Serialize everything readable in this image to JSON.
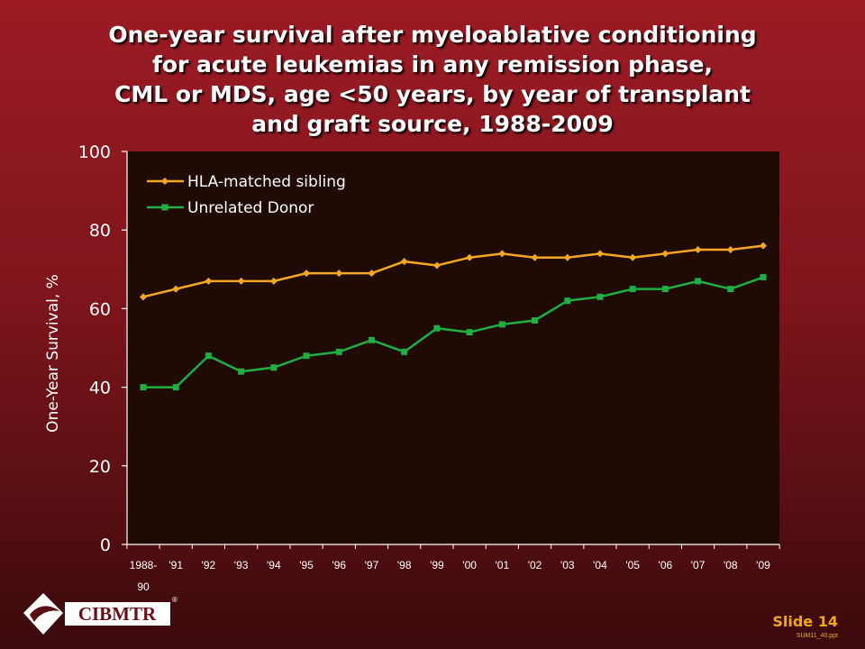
{
  "slide": {
    "title_lines": [
      "One-year survival after myeloablative conditioning",
      "for acute leukemias in any remission phase,",
      "CML or MDS, age <50 years, by year of transplant",
      "and graft source, 1988-2009"
    ],
    "slide_label": "Slide 14",
    "file_ref": "SUM11_40.ppt",
    "logo_text": "CIBMTR",
    "logo_mark": "®"
  },
  "colors": {
    "plot_bg": "#200b04",
    "axis": "#ffffff",
    "sibling": "#f5a623",
    "unrelated": "#1fae3f",
    "slide_label": "#f0a818"
  },
  "chart_data": {
    "type": "line",
    "title": "",
    "xlabel": "",
    "ylabel": "One-Year Survival, %",
    "ylim": [
      0,
      100
    ],
    "yticks": [
      0,
      20,
      40,
      60,
      80,
      100
    ],
    "grid": false,
    "legend_position": "top-left",
    "categories": [
      "1988-90",
      "'91",
      "'92",
      "'93",
      "'94",
      "'95",
      "'96",
      "'97",
      "'98",
      "'99",
      "'00",
      "'01",
      "'02",
      "'03",
      "'04",
      "'05",
      "'06",
      "'07",
      "'08",
      "'09"
    ],
    "series": [
      {
        "name": "HLA-matched sibling",
        "marker": "diamond",
        "color": "#f5a623",
        "values": [
          63,
          65,
          67,
          67,
          67,
          69,
          69,
          69,
          72,
          71,
          73,
          74,
          73,
          73,
          74,
          73,
          74,
          75,
          75,
          76
        ]
      },
      {
        "name": "Unrelated Donor",
        "marker": "square",
        "color": "#1fae3f",
        "values": [
          40,
          40,
          48,
          44,
          45,
          48,
          49,
          52,
          49,
          55,
          54,
          56,
          57,
          62,
          63,
          65,
          65,
          67,
          65,
          68
        ]
      }
    ]
  }
}
